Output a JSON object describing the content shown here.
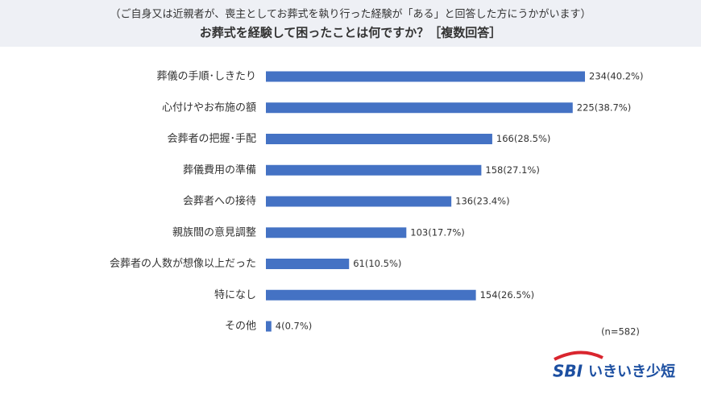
{
  "chart_data": {
    "type": "bar",
    "subtitle": "（ご自身又は近親者が、喪主としてお葬式を執り行った経験が「ある」と回答した方にうかがいます）",
    "title": "お葬式を経験して困ったことは何ですか？［複数回答］",
    "categories": [
      "葬儀の手順･しきたり",
      "心付けやお布施の額",
      "会葬者の把握･手配",
      "葬儀費用の準備",
      "会葬者への接待",
      "親族間の意見調整",
      "会葬者の人数が想像以上だった",
      "特になし",
      "その他"
    ],
    "values": [
      234,
      225,
      166,
      158,
      136,
      103,
      61,
      154,
      4
    ],
    "value_labels": [
      "234(40.2%)",
      "225(38.7%)",
      "166(28.5%)",
      "158(27.1%)",
      "136(23.4%)",
      "103(17.7%)",
      "61(10.5%)",
      "154(26.5%)",
      "4(0.7%)"
    ],
    "color": "#4472c4",
    "note": "(n=582)"
  },
  "logo": {
    "brand": "SBI",
    "name": "いきいき少短"
  }
}
